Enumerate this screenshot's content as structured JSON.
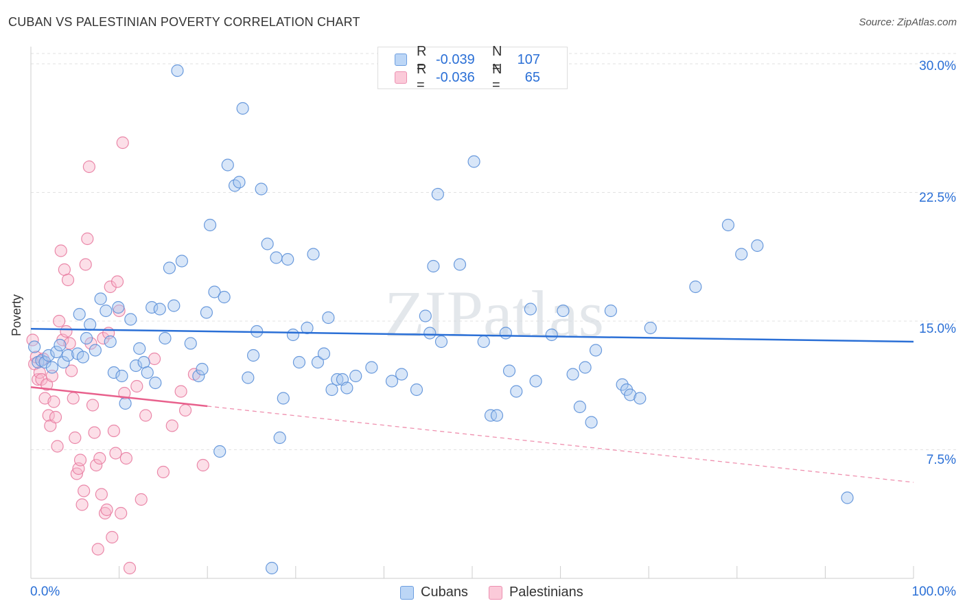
{
  "title": "CUBAN VS PALESTINIAN POVERTY CORRELATION CHART",
  "source": "Source: ZipAtlas.com",
  "watermark": "ZIPatlas",
  "colors": {
    "cubans_fill": "#a8c8f0",
    "cubans_stroke": "#5a8fd8",
    "cubans_line": "#2a6fd6",
    "pal_fill": "#f8b8cc",
    "pal_stroke": "#e87ba0",
    "pal_line": "#e8608c",
    "value_text": "#2a6fd6"
  },
  "legend_top": [
    {
      "label": "R =",
      "r": "-0.039",
      "n_label": "N =",
      "n": "107"
    },
    {
      "label": "R =",
      "r": "-0.036",
      "n_label": "N =",
      "n": "65"
    }
  ],
  "bottom_legend": [
    "Cubans",
    "Palestinians"
  ],
  "chart_data": {
    "type": "scatter",
    "title": "CUBAN VS PALESTINIAN POVERTY CORRELATION CHART",
    "xlabel": "",
    "ylabel": "Poverty",
    "xlim": [
      0,
      100
    ],
    "ylim": [
      0,
      31.0
    ],
    "x_tick_labels": [
      "0.0%",
      "100.0%"
    ],
    "y_ticks": [
      7.5,
      15.0,
      22.5,
      30.0
    ],
    "y_tick_labels": [
      "7.5%",
      "15.0%",
      "22.5%",
      "30.0%"
    ],
    "series": [
      {
        "name": "Cubans",
        "R": -0.039,
        "N": 107,
        "trend": {
          "x0": 0,
          "y0": 14.55,
          "x1": 100,
          "y1": 13.8,
          "solid_until": 100
        },
        "points": [
          [
            0.4,
            13.5
          ],
          [
            0.8,
            12.6
          ],
          [
            1.2,
            12.7
          ],
          [
            1.6,
            12.6
          ],
          [
            2.0,
            13.0
          ],
          [
            2.4,
            12.3
          ],
          [
            2.9,
            13.2
          ],
          [
            3.3,
            13.6
          ],
          [
            3.7,
            12.6
          ],
          [
            4.2,
            13.0
          ],
          [
            5.3,
            13.1
          ],
          [
            5.5,
            15.4
          ],
          [
            5.9,
            12.9
          ],
          [
            6.3,
            14.0
          ],
          [
            6.7,
            14.8
          ],
          [
            7.3,
            13.3
          ],
          [
            7.9,
            16.3
          ],
          [
            8.5,
            15.6
          ],
          [
            9.0,
            13.8
          ],
          [
            9.4,
            12.0
          ],
          [
            9.9,
            15.8
          ],
          [
            10.3,
            11.8
          ],
          [
            10.7,
            10.2
          ],
          [
            11.3,
            15.1
          ],
          [
            11.9,
            12.4
          ],
          [
            12.3,
            13.4
          ],
          [
            12.8,
            12.6
          ],
          [
            13.2,
            12.0
          ],
          [
            13.7,
            15.8
          ],
          [
            14.1,
            11.4
          ],
          [
            14.6,
            15.7
          ],
          [
            15.2,
            14.0
          ],
          [
            15.7,
            18.1
          ],
          [
            16.2,
            15.9
          ],
          [
            16.6,
            29.6
          ],
          [
            17.1,
            18.5
          ],
          [
            18.1,
            13.7
          ],
          [
            19.0,
            11.8
          ],
          [
            19.4,
            12.2
          ],
          [
            19.9,
            15.5
          ],
          [
            20.3,
            20.6
          ],
          [
            20.8,
            16.7
          ],
          [
            21.4,
            7.4
          ],
          [
            21.9,
            16.4
          ],
          [
            22.3,
            24.1
          ],
          [
            23.1,
            22.9
          ],
          [
            23.6,
            23.1
          ],
          [
            24.0,
            27.4
          ],
          [
            24.6,
            11.7
          ],
          [
            25.2,
            13.0
          ],
          [
            25.6,
            14.4
          ],
          [
            26.1,
            22.7
          ],
          [
            26.8,
            19.5
          ],
          [
            27.3,
            0.6
          ],
          [
            27.8,
            18.7
          ],
          [
            28.2,
            8.2
          ],
          [
            28.6,
            10.5
          ],
          [
            29.1,
            18.6
          ],
          [
            29.7,
            14.2
          ],
          [
            30.4,
            12.6
          ],
          [
            31.3,
            14.6
          ],
          [
            32.0,
            18.9
          ],
          [
            32.5,
            12.6
          ],
          [
            33.2,
            13.1
          ],
          [
            33.7,
            15.2
          ],
          [
            34.1,
            11.0
          ],
          [
            34.7,
            11.6
          ],
          [
            35.3,
            11.6
          ],
          [
            35.8,
            11.1
          ],
          [
            36.8,
            11.8
          ],
          [
            38.6,
            12.3
          ],
          [
            40.9,
            11.5
          ],
          [
            42.0,
            11.9
          ],
          [
            43.7,
            11.0
          ],
          [
            44.7,
            15.3
          ],
          [
            45.2,
            14.3
          ],
          [
            45.6,
            18.2
          ],
          [
            46.1,
            22.4
          ],
          [
            46.5,
            13.8
          ],
          [
            48.6,
            18.3
          ],
          [
            50.2,
            24.3
          ],
          [
            51.3,
            13.8
          ],
          [
            52.1,
            9.5
          ],
          [
            52.8,
            9.5
          ],
          [
            53.8,
            14.3
          ],
          [
            54.2,
            12.1
          ],
          [
            55.0,
            10.9
          ],
          [
            56.6,
            15.7
          ],
          [
            57.2,
            11.5
          ],
          [
            59.0,
            14.2
          ],
          [
            60.3,
            15.6
          ],
          [
            61.4,
            11.9
          ],
          [
            62.2,
            10.0
          ],
          [
            62.8,
            12.3
          ],
          [
            63.5,
            9.1
          ],
          [
            64.0,
            13.3
          ],
          [
            65.7,
            15.6
          ],
          [
            67.0,
            11.3
          ],
          [
            67.5,
            11.0
          ],
          [
            67.9,
            10.7
          ],
          [
            69.0,
            10.5
          ],
          [
            70.2,
            14.6
          ],
          [
            75.3,
            17.0
          ],
          [
            79.0,
            20.6
          ],
          [
            80.5,
            18.9
          ],
          [
            82.3,
            19.4
          ],
          [
            92.5,
            4.7
          ]
        ]
      },
      {
        "name": "Palestinians",
        "R": -0.036,
        "N": 65,
        "trend": {
          "x0": 0,
          "y0": 11.15,
          "x1": 100,
          "y1": 5.6,
          "solid_until": 20
        },
        "points": [
          [
            0.2,
            13.9
          ],
          [
            0.4,
            12.5
          ],
          [
            0.6,
            12.9
          ],
          [
            0.8,
            11.6
          ],
          [
            1.0,
            12.0
          ],
          [
            1.2,
            11.6
          ],
          [
            1.4,
            12.8
          ],
          [
            1.6,
            10.5
          ],
          [
            1.8,
            11.3
          ],
          [
            2.0,
            9.5
          ],
          [
            2.2,
            8.9
          ],
          [
            2.4,
            11.8
          ],
          [
            2.6,
            10.3
          ],
          [
            2.8,
            9.4
          ],
          [
            3.0,
            7.7
          ],
          [
            3.2,
            15.0
          ],
          [
            3.4,
            19.1
          ],
          [
            3.6,
            13.9
          ],
          [
            3.8,
            18.0
          ],
          [
            4.0,
            14.4
          ],
          [
            4.2,
            17.4
          ],
          [
            4.4,
            13.7
          ],
          [
            4.6,
            12.1
          ],
          [
            4.8,
            10.5
          ],
          [
            5.0,
            8.2
          ],
          [
            5.2,
            6.1
          ],
          [
            5.4,
            6.4
          ],
          [
            5.6,
            6.9
          ],
          [
            5.8,
            4.3
          ],
          [
            6.0,
            5.1
          ],
          [
            6.2,
            18.3
          ],
          [
            6.4,
            19.8
          ],
          [
            6.6,
            24.0
          ],
          [
            6.8,
            13.7
          ],
          [
            7.0,
            10.1
          ],
          [
            7.2,
            8.5
          ],
          [
            7.4,
            6.6
          ],
          [
            7.6,
            1.7
          ],
          [
            7.8,
            7.0
          ],
          [
            8.0,
            4.9
          ],
          [
            8.2,
            14.0
          ],
          [
            8.4,
            3.8
          ],
          [
            8.6,
            4.0
          ],
          [
            8.8,
            14.3
          ],
          [
            9.0,
            17.0
          ],
          [
            9.2,
            2.4
          ],
          [
            9.4,
            8.6
          ],
          [
            9.6,
            7.3
          ],
          [
            9.8,
            17.3
          ],
          [
            10.0,
            15.6
          ],
          [
            10.2,
            3.8
          ],
          [
            10.4,
            25.4
          ],
          [
            10.6,
            10.8
          ],
          [
            10.8,
            7.0
          ],
          [
            11.2,
            0.6
          ],
          [
            12.0,
            11.2
          ],
          [
            12.5,
            4.6
          ],
          [
            13.0,
            9.5
          ],
          [
            14.0,
            12.8
          ],
          [
            15.0,
            6.2
          ],
          [
            16.0,
            8.9
          ],
          [
            17.0,
            10.9
          ],
          [
            17.5,
            9.8
          ],
          [
            18.5,
            11.9
          ],
          [
            19.5,
            6.6
          ]
        ]
      }
    ]
  }
}
